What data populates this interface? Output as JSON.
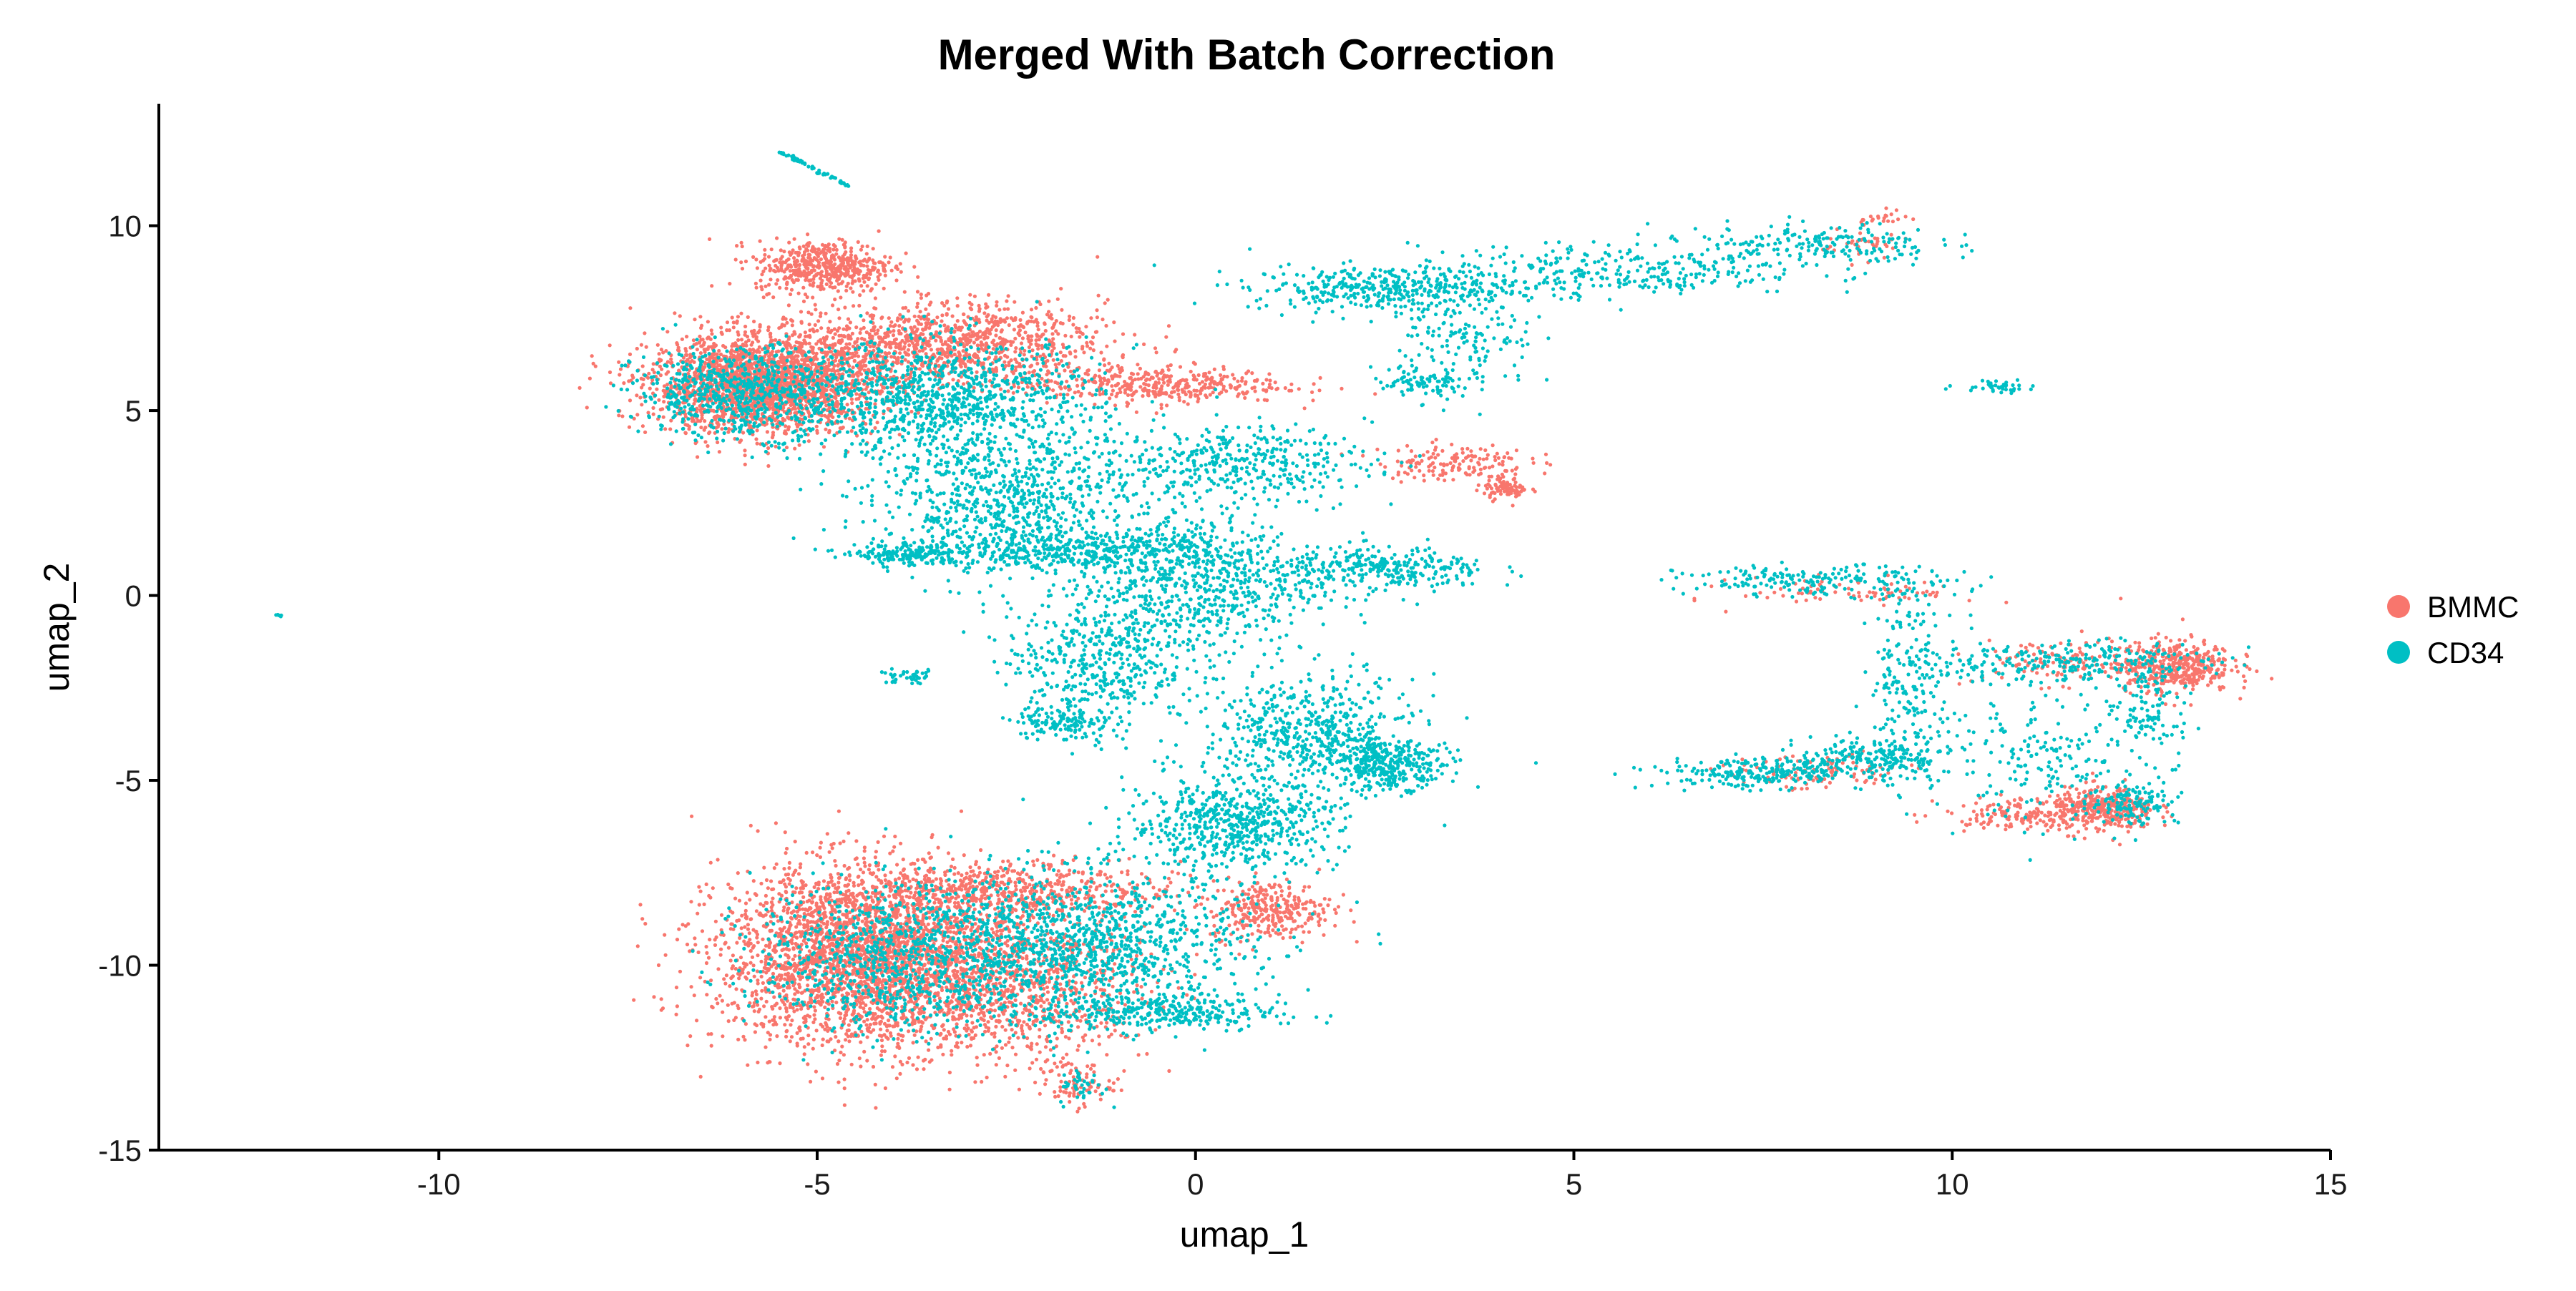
{
  "chart_data": {
    "type": "scatter",
    "title": "Merged With Batch Correction",
    "xlabel": "umap_1",
    "ylabel": "umap_2",
    "xlim": [
      -13.7,
      15
    ],
    "ylim": [
      -15,
      13.3
    ],
    "x_ticks": [
      -10,
      -5,
      0,
      5,
      10,
      15
    ],
    "y_ticks": [
      -15,
      -10,
      -5,
      0,
      5,
      10
    ],
    "legend_placement": "right",
    "grid": false,
    "series": [
      {
        "name": "BMMC",
        "color": "#F8766D",
        "clusters": [
          {
            "cx": -5.7,
            "cy": 5.7,
            "sx": 0.75,
            "sy": 0.65,
            "n": 2200
          },
          {
            "cx": -3.4,
            "cy": 6.8,
            "sx": 1.1,
            "sy": 0.55,
            "n": 1100
          },
          {
            "cx": -4.9,
            "cy": 8.9,
            "sx": 0.45,
            "sy": 0.35,
            "n": 500
          },
          {
            "cx": -0.6,
            "cy": 5.7,
            "sx": 0.9,
            "sy": 0.25,
            "n": 400
          },
          {
            "cx": 3.4,
            "cy": 3.6,
            "sx": 0.5,
            "sy": 0.25,
            "n": 150
          },
          {
            "cx": 4.1,
            "cy": 2.9,
            "sx": 0.15,
            "sy": 0.15,
            "n": 80
          },
          {
            "cx": -4.3,
            "cy": -9.8,
            "sx": 1.0,
            "sy": 1.2,
            "n": 3000
          },
          {
            "cx": -2.2,
            "cy": -10.6,
            "sx": 0.8,
            "sy": 1.0,
            "n": 700
          },
          {
            "cx": -2.6,
            "cy": -8.0,
            "sx": 1.2,
            "sy": 0.4,
            "n": 600
          },
          {
            "cx": 1.0,
            "cy": -8.5,
            "sx": 0.4,
            "sy": 0.4,
            "n": 300
          },
          {
            "cx": -1.6,
            "cy": -13.2,
            "sx": 0.25,
            "sy": 0.3,
            "n": 80
          },
          {
            "cx": 12.9,
            "cy": -1.9,
            "sx": 0.4,
            "sy": 0.35,
            "n": 450
          },
          {
            "cx": 12.0,
            "cy": -5.8,
            "sx": 0.35,
            "sy": 0.3,
            "n": 350
          },
          {
            "cx": 10.9,
            "cy": -5.9,
            "sx": 0.5,
            "sy": 0.2,
            "n": 150
          },
          {
            "cx": 11.3,
            "cy": -1.8,
            "sx": 0.5,
            "sy": 0.3,
            "n": 100
          },
          {
            "cx": 8.2,
            "cy": -4.8,
            "sx": 0.6,
            "sy": 0.25,
            "n": 100
          },
          {
            "cx": 8.8,
            "cy": 0.1,
            "sx": 0.8,
            "sy": 0.2,
            "n": 80
          },
          {
            "cx": 8.8,
            "cy": 9.5,
            "sx": 0.3,
            "sy": 0.2,
            "n": 40
          },
          {
            "cx": 9.1,
            "cy": 10.2,
            "sx": 0.15,
            "sy": 0.1,
            "n": 20
          }
        ]
      },
      {
        "name": "CD34",
        "color": "#00BFC4",
        "clusters": [
          {
            "cx": -6.0,
            "cy": 5.5,
            "sx": 0.7,
            "sy": 0.6,
            "n": 700
          },
          {
            "cx": -3.3,
            "cy": 5.3,
            "sx": 1.0,
            "sy": 0.8,
            "n": 1000
          },
          {
            "cx": -2.5,
            "cy": 2.5,
            "sx": 0.9,
            "sy": 1.0,
            "n": 800
          },
          {
            "cx": 0.5,
            "cy": 3.6,
            "sx": 0.9,
            "sy": 0.5,
            "n": 400
          },
          {
            "cx": -1.5,
            "cy": 1.2,
            "sx": 1.2,
            "sy": 0.25,
            "n": 400
          },
          {
            "cx": 0.0,
            "cy": 0.3,
            "sx": 0.8,
            "sy": 1.0,
            "n": 700
          },
          {
            "cx": -1.3,
            "cy": -1.7,
            "sx": 0.6,
            "sy": 0.8,
            "n": 400
          },
          {
            "cx": 2.5,
            "cy": 0.7,
            "sx": 0.7,
            "sy": 0.3,
            "n": 300
          },
          {
            "cx": 1.5,
            "cy": -3.8,
            "sx": 0.7,
            "sy": 0.8,
            "n": 600
          },
          {
            "cx": 2.6,
            "cy": -4.6,
            "sx": 0.35,
            "sy": 0.3,
            "n": 300
          },
          {
            "cx": -1.7,
            "cy": -3.4,
            "sx": 0.35,
            "sy": 0.3,
            "n": 150
          },
          {
            "cx": 0.5,
            "cy": -6.2,
            "sx": 0.7,
            "sy": 0.6,
            "n": 600
          },
          {
            "cx": -3.8,
            "cy": 1.1,
            "sx": 0.35,
            "sy": 0.12,
            "n": 150
          },
          {
            "cx": -1.5,
            "cy": -9.5,
            "sx": 1.1,
            "sy": 1.0,
            "n": 1200
          },
          {
            "cx": -4.0,
            "cy": -9.8,
            "sx": 0.9,
            "sy": 1.0,
            "n": 800
          },
          {
            "cx": -0.5,
            "cy": -11.3,
            "sx": 0.8,
            "sy": 0.25,
            "n": 300
          },
          {
            "cx": -1.5,
            "cy": -13.3,
            "sx": 0.15,
            "sy": 0.25,
            "n": 40
          },
          {
            "cx": 2.5,
            "cy": 8.3,
            "sx": 0.9,
            "sy": 0.3,
            "n": 400
          },
          {
            "cx": 5.5,
            "cy": 8.8,
            "sx": 1.3,
            "sy": 0.35,
            "n": 300
          },
          {
            "cx": 8.2,
            "cy": 9.5,
            "sx": 0.8,
            "sy": 0.3,
            "n": 200
          },
          {
            "cx": 3.6,
            "cy": 6.8,
            "sx": 0.45,
            "sy": 0.7,
            "n": 150
          },
          {
            "cx": 3.0,
            "cy": 5.7,
            "sx": 0.35,
            "sy": 0.2,
            "n": 80
          },
          {
            "cx": -3.8,
            "cy": -2.2,
            "sx": 0.2,
            "sy": 0.1,
            "n": 40
          },
          {
            "cx": 10.6,
            "cy": 5.7,
            "sx": 0.25,
            "sy": 0.1,
            "n": 40
          },
          {
            "cx": -12.1,
            "cy": -0.55,
            "sx": 0.05,
            "sy": 0.05,
            "n": 6
          },
          {
            "cx": 7.5,
            "cy": -4.8,
            "sx": 0.7,
            "sy": 0.2,
            "n": 250
          },
          {
            "cx": 9.0,
            "cy": -4.4,
            "sx": 0.5,
            "sy": 0.3,
            "n": 200
          },
          {
            "cx": 8.2,
            "cy": 0.4,
            "sx": 0.9,
            "sy": 0.2,
            "n": 200
          },
          {
            "cx": 9.5,
            "cy": -2.2,
            "sx": 0.3,
            "sy": 1.2,
            "n": 200
          },
          {
            "cx": 11.5,
            "cy": -1.8,
            "sx": 1.0,
            "sy": 0.3,
            "n": 250
          },
          {
            "cx": 11.3,
            "cy": -4.5,
            "sx": 0.8,
            "sy": 0.8,
            "n": 200
          },
          {
            "cx": 12.4,
            "cy": -5.6,
            "sx": 0.3,
            "sy": 0.3,
            "n": 120
          },
          {
            "cx": 12.6,
            "cy": -3.0,
            "sx": 0.3,
            "sy": 0.6,
            "n": 100
          }
        ],
        "streaks": [
          {
            "x1": -5.5,
            "y1": 12.0,
            "x2": -4.6,
            "y2": 11.1,
            "n": 60
          }
        ]
      }
    ]
  }
}
